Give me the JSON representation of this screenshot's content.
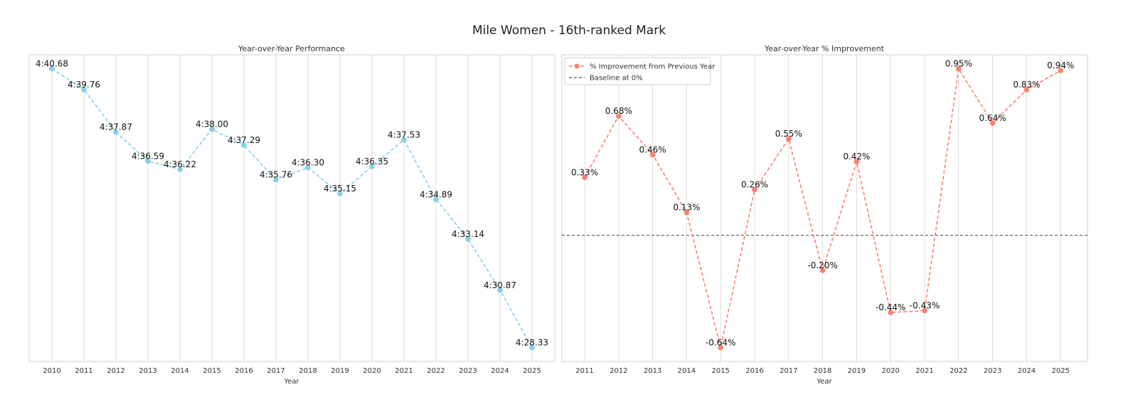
{
  "figure_title": "Mile Women - 16th-ranked Mark",
  "colors": {
    "performance": "#87ceeb",
    "improvement": "#fa8072",
    "baseline": "#555555"
  },
  "chart_data": [
    {
      "type": "line",
      "title": "Year-over-Year Performance",
      "xlabel": "Year",
      "ylabel": "",
      "x": [
        2010,
        2011,
        2012,
        2013,
        2014,
        2015,
        2016,
        2017,
        2018,
        2019,
        2020,
        2021,
        2022,
        2023,
        2024,
        2025
      ],
      "series": [
        {
          "values": [
            "4:40.68",
            "4:39.76",
            "4:37.87",
            "4:36.59",
            "4:36.22",
            "4:38.00",
            "4:37.29",
            "4:35.76",
            "4:36.30",
            "4:35.15",
            "4:36.35",
            "4:37.53",
            "4:34.89",
            "4:33.14",
            "4:30.87",
            "4:28.33"
          ],
          "line_style": "dashed",
          "marker": "circle"
        }
      ],
      "grid": "vertical",
      "y_ticks_shown": false
    },
    {
      "type": "line",
      "title": "Year-over-Year % Improvement",
      "xlabel": "Year",
      "ylabel": "",
      "x": [
        2011,
        2012,
        2013,
        2014,
        2015,
        2016,
        2017,
        2018,
        2019,
        2020,
        2021,
        2022,
        2023,
        2024,
        2025
      ],
      "series": [
        {
          "name": "% Improvement from Previous Year",
          "values": [
            0.33,
            0.68,
            0.46,
            0.13,
            -0.64,
            0.26,
            0.55,
            -0.2,
            0.42,
            -0.44,
            -0.43,
            0.95,
            0.64,
            0.83,
            0.94
          ],
          "labels": [
            "0.33%",
            "0.68%",
            "0.46%",
            "0.13%",
            "-0.64%",
            "0.26%",
            "0.55%",
            "-0.20%",
            "0.42%",
            "-0.44%",
            "-0.43%",
            "0.95%",
            "0.64%",
            "0.83%",
            "0.94%"
          ],
          "line_style": "dashed",
          "marker": "circle"
        },
        {
          "name": "Baseline at 0%",
          "value": 0,
          "line_style": "dashed"
        }
      ],
      "legend": "top-left",
      "grid": "vertical",
      "y_ticks_shown": false
    }
  ]
}
